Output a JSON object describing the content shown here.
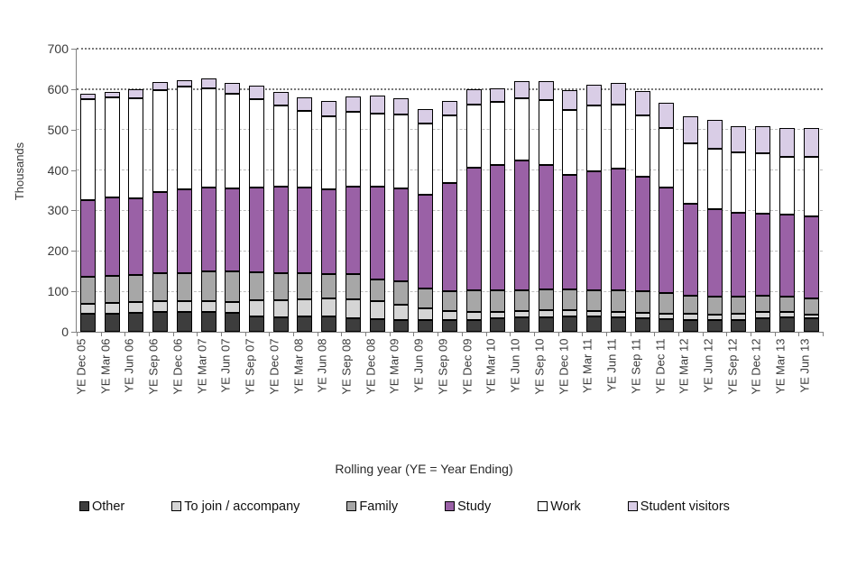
{
  "page": {
    "background": "#ffffff"
  },
  "chart_data": {
    "type": "bar",
    "stacked": true,
    "title": "",
    "xlabel": "Rolling year (YE = Year Ending)",
    "ylabel": "Thousands",
    "ylim": [
      0,
      700
    ],
    "ytick_labels": [
      "0",
      "100",
      "200",
      "300",
      "400",
      "500",
      "600",
      "700"
    ],
    "grid": "horizontal; light dashed at 100-500, dark dotted at 600-700",
    "legend_position": "bottom",
    "categories": [
      "YE Dec 05",
      "YE Mar 06",
      "YE Jun 06",
      "YE Sep 06",
      "YE Dec 06",
      "YE Mar 07",
      "YE Jun 07",
      "YE Sep 07",
      "YE Dec 07",
      "YE Mar 08",
      "YE Jun 08",
      "YE Sep 08",
      "YE Dec 08",
      "YE Mar 09",
      "YE Jun 09",
      "YE Sep 09",
      "YE Dec 09",
      "YE Mar 10",
      "YE Jun 10",
      "YE Sep 10",
      "YE Dec 10",
      "YE Mar 11",
      "YE Jun 11",
      "YE Sep 11",
      "YE Dec 11",
      "YE Mar 12",
      "YE Jun 12",
      "YE Sep 12",
      "YE Dec 12",
      "YE Mar 13",
      "YE Jun 13"
    ],
    "series": [
      {
        "name": "Other",
        "color": "#3d3d3d",
        "values": [
          44,
          45,
          46,
          48,
          49,
          50,
          46,
          37,
          36,
          37,
          37,
          34,
          31,
          30,
          30,
          29,
          30,
          33,
          35,
          36,
          38,
          38,
          36,
          34,
          31,
          29,
          28,
          29,
          33,
          35,
          33
        ]
      },
      {
        "name": "To join / accompany",
        "color": "#d5d5d5",
        "values": [
          26,
          26,
          28,
          28,
          27,
          26,
          28,
          40,
          42,
          44,
          45,
          46,
          44,
          38,
          28,
          22,
          20,
          17,
          16,
          17,
          15,
          13,
          12,
          12,
          14,
          15,
          15,
          15,
          15,
          14,
          9
        ]
      },
      {
        "name": "Family",
        "color": "#a7a7a7",
        "values": [
          67,
          67,
          66,
          68,
          70,
          73,
          75,
          70,
          66,
          65,
          61,
          62,
          54,
          58,
          49,
          49,
          52,
          53,
          52,
          52,
          52,
          52,
          55,
          54,
          51,
          46,
          45,
          43,
          41,
          38,
          41
        ]
      },
      {
        "name": "Study",
        "color": "#9a61a6",
        "values": [
          189,
          194,
          190,
          201,
          206,
          207,
          205,
          210,
          214,
          211,
          209,
          216,
          229,
          228,
          232,
          268,
          304,
          310,
          320,
          307,
          283,
          294,
          300,
          283,
          261,
          227,
          216,
          208,
          204,
          203,
          202
        ]
      },
      {
        "name": "Work",
        "color": "#ffffff",
        "values": [
          249,
          248,
          247,
          252,
          254,
          245,
          234,
          219,
          202,
          190,
          182,
          187,
          181,
          184,
          175,
          167,
          156,
          156,
          154,
          162,
          161,
          162,
          159,
          153,
          146,
          149,
          149,
          149,
          149,
          143,
          147
        ]
      },
      {
        "name": "Student visitors",
        "color": "#d9cde6",
        "values": [
          14,
          14,
          23,
          21,
          17,
          25,
          27,
          32,
          34,
          32,
          36,
          37,
          45,
          39,
          37,
          35,
          37,
          34,
          42,
          46,
          48,
          52,
          54,
          60,
          64,
          66,
          70,
          64,
          66,
          70,
          71
        ]
      }
    ]
  }
}
